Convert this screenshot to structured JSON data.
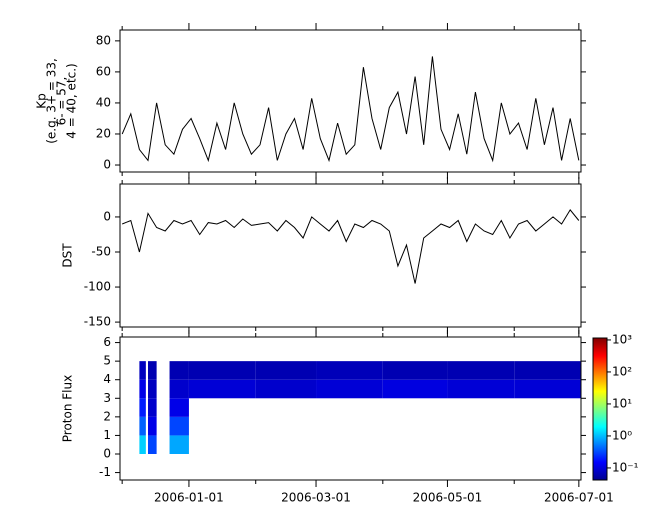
{
  "chart_data": [
    {
      "type": "line",
      "ylabel": [
        "Kp",
        "(e.g. 3+ = 33,",
        "6- = 57,",
        "4 = 40, etc.)"
      ],
      "xlim": [
        "2005-11-30",
        "2006-07-02"
      ],
      "ylim": [
        -4.5,
        87
      ],
      "yticks": [
        0,
        20,
        40,
        60,
        80
      ],
      "color": "#000000",
      "x": [
        "2005-12-01",
        "2005-12-05",
        "2005-12-09",
        "2005-12-13",
        "2005-12-17",
        "2005-12-21",
        "2005-12-25",
        "2005-12-29",
        "2006-01-02",
        "2006-01-06",
        "2006-01-10",
        "2006-01-14",
        "2006-01-18",
        "2006-01-22",
        "2006-01-26",
        "2006-01-30",
        "2006-02-03",
        "2006-02-07",
        "2006-02-11",
        "2006-02-15",
        "2006-02-19",
        "2006-02-23",
        "2006-02-27",
        "2006-03-03",
        "2006-03-07",
        "2006-03-11",
        "2006-03-15",
        "2006-03-19",
        "2006-03-23",
        "2006-03-27",
        "2006-03-31",
        "2006-04-04",
        "2006-04-08",
        "2006-04-12",
        "2006-04-16",
        "2006-04-20",
        "2006-04-24",
        "2006-04-28",
        "2006-05-02",
        "2006-05-06",
        "2006-05-10",
        "2006-05-14",
        "2006-05-18",
        "2006-05-22",
        "2006-05-26",
        "2006-05-30",
        "2006-06-03",
        "2006-06-07",
        "2006-06-11",
        "2006-06-15",
        "2006-06-19",
        "2006-06-23",
        "2006-06-27",
        "2006-07-01"
      ],
      "values": [
        20,
        33,
        10,
        3,
        40,
        13,
        7,
        23,
        30,
        17,
        3,
        27,
        10,
        40,
        20,
        7,
        13,
        37,
        3,
        20,
        30,
        10,
        43,
        17,
        3,
        27,
        7,
        13,
        63,
        30,
        10,
        37,
        47,
        20,
        57,
        13,
        70,
        23,
        10,
        33,
        7,
        47,
        17,
        3,
        40,
        20,
        27,
        10,
        43,
        13,
        37,
        3,
        30,
        3
      ]
    },
    {
      "type": "line",
      "ylabel": [
        "DST"
      ],
      "xlim": [
        "2005-11-30",
        "2006-07-02"
      ],
      "ylim": [
        -157,
        47
      ],
      "yticks": [
        0,
        -50,
        -100,
        -150
      ],
      "color": "#000000",
      "x": [
        "2005-12-01",
        "2005-12-05",
        "2005-12-09",
        "2005-12-13",
        "2005-12-17",
        "2005-12-21",
        "2005-12-25",
        "2005-12-29",
        "2006-01-02",
        "2006-01-06",
        "2006-01-10",
        "2006-01-14",
        "2006-01-18",
        "2006-01-22",
        "2006-01-26",
        "2006-01-30",
        "2006-02-03",
        "2006-02-07",
        "2006-02-11",
        "2006-02-15",
        "2006-02-19",
        "2006-02-23",
        "2006-02-27",
        "2006-03-03",
        "2006-03-07",
        "2006-03-11",
        "2006-03-15",
        "2006-03-19",
        "2006-03-23",
        "2006-03-27",
        "2006-03-31",
        "2006-04-04",
        "2006-04-08",
        "2006-04-12",
        "2006-04-16",
        "2006-04-20",
        "2006-04-24",
        "2006-04-28",
        "2006-05-02",
        "2006-05-06",
        "2006-05-10",
        "2006-05-14",
        "2006-05-18",
        "2006-05-22",
        "2006-05-26",
        "2006-05-30",
        "2006-06-03",
        "2006-06-07",
        "2006-06-11",
        "2006-06-15",
        "2006-06-19",
        "2006-06-23",
        "2006-06-27",
        "2006-07-01"
      ],
      "values": [
        -10,
        -5,
        -50,
        5,
        -15,
        -20,
        -5,
        -10,
        -5,
        -25,
        -8,
        -10,
        -5,
        -15,
        -3,
        -12,
        -10,
        -8,
        -20,
        -5,
        -15,
        -30,
        0,
        -10,
        -20,
        -5,
        -35,
        -10,
        -15,
        -5,
        -10,
        -20,
        -70,
        -40,
        -95,
        -30,
        -20,
        -10,
        -15,
        -5,
        -35,
        -10,
        -20,
        -25,
        -5,
        -30,
        -10,
        -5,
        -20,
        -10,
        0,
        -10,
        10,
        -5
      ]
    },
    {
      "type": "heatmap",
      "ylabel": [
        "Proton Flux"
      ],
      "xlim": [
        "2005-11-30",
        "2006-07-02"
      ],
      "ylim": [
        -1.4,
        6.3
      ],
      "yticks": [
        -1,
        0,
        1,
        2,
        3,
        4,
        5,
        6
      ],
      "xticks": [
        "2006-01-01",
        "2006-03-01",
        "2006-05-01",
        "2006-07-01"
      ],
      "xminorticks": [
        "2005-12-01",
        "2006-02-01",
        "2006-04-01",
        "2006-06-01"
      ],
      "x_bins": [
        "2005-12-09",
        "2005-12-12",
        "2005-12-13",
        "2005-12-17",
        "2005-12-23",
        "2006-01-01",
        "2006-02-01",
        "2006-03-01",
        "2006-04-01",
        "2006-05-01",
        "2006-06-01",
        "2006-07-02"
      ],
      "y_bins": [
        0,
        1,
        2,
        3,
        4,
        5
      ],
      "z": [
        [
          1.2,
          null,
          0.3,
          null,
          0.8,
          null,
          null,
          null,
          null,
          null,
          null
        ],
        [
          0.4,
          null,
          0.12,
          null,
          0.3,
          null,
          null,
          null,
          null,
          null,
          null
        ],
        [
          0.2,
          null,
          0.09,
          null,
          0.12,
          null,
          null,
          null,
          null,
          null,
          null
        ],
        [
          0.12,
          null,
          0.08,
          null,
          0.09,
          0.1,
          0.09,
          0.1,
          0.11,
          0.1,
          0.1
        ],
        [
          0.08,
          null,
          0.07,
          null,
          0.07,
          0.07,
          0.07,
          0.075,
          0.07,
          0.07,
          0.07
        ]
      ],
      "log_color": true,
      "zlim": [
        0.042,
        1150
      ],
      "zticks": [
        {
          "value": 0.1,
          "label": "10⁻¹"
        },
        {
          "value": 1,
          "label": "10⁰"
        },
        {
          "value": 10,
          "label": "10¹"
        },
        {
          "value": 100,
          "label": "10²"
        },
        {
          "value": 1000,
          "label": "10³"
        }
      ]
    }
  ]
}
